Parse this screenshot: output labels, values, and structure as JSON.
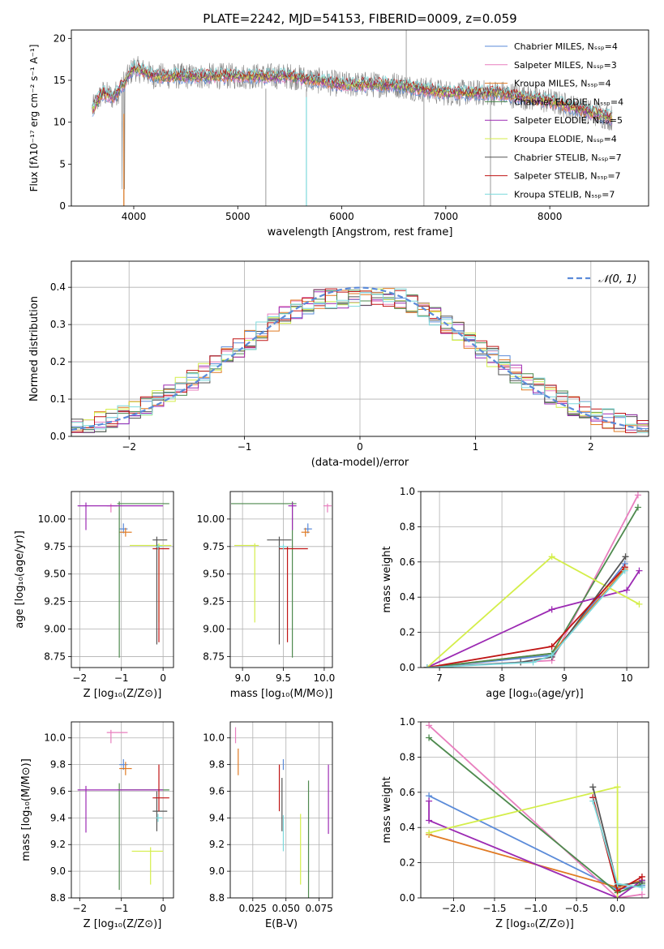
{
  "colors": {
    "chabrier_miles": "#5b8bd9",
    "salpeter_miles": "#e87fbe",
    "kroupa_miles": "#e07a23",
    "chabrier_elodie": "#4e8a4e",
    "salpeter_elodie": "#9c2ab3",
    "kroupa_elodie": "#d4ee4a",
    "chabrier_stelib": "#555555",
    "salpeter_stelib": "#c01515",
    "kroupa_stelib": "#7dd9dc",
    "gaussian": "#5b8bd9",
    "data": "#808080"
  },
  "chart_data": [
    {
      "id": "spectrum",
      "type": "line",
      "title": "PLATE=2242, MJD=54153, FIBERID=0009, z=0.059",
      "xlabel": "wavelength [Angstrom, rest frame]",
      "ylabel": "Flux [fλ10⁻¹⁷ erg cm⁻² s⁻¹ A⁻¹]",
      "xlim": [
        3400,
        8950
      ],
      "ylim": [
        0,
        21
      ],
      "xticks": [
        "4000",
        "5000",
        "6000",
        "7000",
        "8000"
      ],
      "yticks": [
        "0",
        "5",
        "10",
        "15",
        "20"
      ],
      "legend_position": "upper right",
      "continuum_anchors_x": [
        3600,
        3700,
        3800,
        3900,
        4000,
        4100,
        4200,
        4300,
        4500,
        5000,
        5500,
        6000,
        6500,
        7000,
        7500,
        8000,
        8600
      ],
      "continuum_anchors_y": [
        11.5,
        13.5,
        13.0,
        14.5,
        16.5,
        16.0,
        15.5,
        15.5,
        15.5,
        15.5,
        15.5,
        14.5,
        14.5,
        13.5,
        13.5,
        12.5,
        10.5
      ],
      "series": [
        {
          "name": "Chabrier MILES, Nₛₛₚ=4",
          "color_key": "chabrier_miles"
        },
        {
          "name": "Salpeter MILES, Nₛₛₚ=3",
          "color_key": "salpeter_miles"
        },
        {
          "name": "Kroupa MILES, Nₛₛₚ=4",
          "color_key": "kroupa_miles"
        },
        {
          "name": "Chabrier ELODIE, Nₛₛₚ=4",
          "color_key": "chabrier_elodie"
        },
        {
          "name": "Salpeter ELODIE, Nₛₛₚ=5",
          "color_key": "salpeter_elodie"
        },
        {
          "name": "Kroupa ELODIE, Nₛₛₚ=4",
          "color_key": "kroupa_elodie"
        },
        {
          "name": "Chabrier STELIB, Nₛₛₚ=7",
          "color_key": "chabrier_stelib"
        },
        {
          "name": "Salpeter STELIB, Nₛₛₚ=7",
          "color_key": "salpeter_stelib"
        },
        {
          "name": "Kroupa STELIB, Nₛₛₚ=7",
          "color_key": "kroupa_stelib"
        }
      ]
    },
    {
      "id": "residual_hist",
      "type": "area",
      "xlabel": "(data-model)/error",
      "ylabel": "Normed distribution",
      "xlim": [
        -2.5,
        2.5
      ],
      "ylim": [
        0,
        0.47
      ],
      "xticks": [
        "−2",
        "−1",
        "0",
        "1",
        "2"
      ],
      "yticks": [
        "0.0",
        "0.1",
        "0.2",
        "0.3",
        "0.4"
      ],
      "legend": "𝒩(0, 1)",
      "legend_position": "upper right"
    },
    {
      "id": "age_vs_Z",
      "type": "scatter",
      "xlabel": "Z [log₁₀(Z/Z⊙)]",
      "ylabel": "age  [log₁₀(age/yr)]",
      "xlim": [
        -2.2,
        0.25
      ],
      "ylim": [
        8.65,
        10.25
      ],
      "xticks": [
        "−2",
        "−1",
        "0"
      ],
      "yticks": [
        "8.75",
        "9.00",
        "9.25",
        "9.50",
        "9.75",
        "10.00"
      ],
      "points": [
        {
          "c": "chabrier_miles",
          "x": -0.95,
          "xerr": [
            0.1,
            0.1
          ],
          "y": 9.91,
          "yerr": [
            0.04,
            0.05
          ]
        },
        {
          "c": "salpeter_miles",
          "x": -1.25,
          "xerr": [
            0.1,
            0.15
          ],
          "y": 10.12,
          "yerr": [
            0.06,
            0.02
          ]
        },
        {
          "c": "kroupa_miles",
          "x": -0.9,
          "xerr": [
            0.15,
            0.15
          ],
          "y": 9.88,
          "yerr": [
            0.04,
            0.04
          ]
        },
        {
          "c": "chabrier_elodie",
          "x": -1.05,
          "xerr": [
            0.05,
            1.2
          ],
          "y": 10.14,
          "yerr": [
            1.4,
            0.02
          ]
        },
        {
          "c": "salpeter_elodie",
          "x": -1.85,
          "xerr": [
            0.2,
            1.85
          ],
          "y": 10.12,
          "yerr": [
            0.22,
            0.03
          ]
        },
        {
          "c": "kroupa_elodie",
          "x": -0.1,
          "xerr": [
            0.7,
            0.3
          ],
          "y": 9.76,
          "yerr": [
            0.7,
            0.02
          ]
        },
        {
          "c": "chabrier_stelib",
          "x": -0.15,
          "xerr": [
            0.1,
            0.25
          ],
          "y": 9.81,
          "yerr": [
            0.95,
            0.03
          ]
        },
        {
          "c": "salpeter_stelib",
          "x": -0.1,
          "xerr": [
            0.15,
            0.25
          ],
          "y": 9.73,
          "yerr": [
            0.85,
            0.02
          ]
        },
        {
          "c": "kroupa_stelib",
          "x": -0.12,
          "xerr": [
            0.05,
            0.1
          ],
          "y": 9.75,
          "yerr": [
            0.03,
            0.02
          ]
        }
      ]
    },
    {
      "id": "age_vs_mass",
      "type": "scatter",
      "xlabel": "mass [log₁₀(M/M⊙)]",
      "ylabel": "",
      "xlim": [
        8.85,
        10.1
      ],
      "ylim": [
        8.65,
        10.25
      ],
      "xticks": [
        "9.0",
        "9.5",
        "10.0"
      ],
      "yticks": [
        "8.75",
        "9.00",
        "9.25",
        "9.50",
        "9.75",
        "10.00"
      ],
      "points": [
        {
          "c": "chabrier_miles",
          "x": 9.8,
          "xerr": [
            0.05,
            0.05
          ],
          "y": 9.91,
          "yerr": [
            0.04,
            0.05
          ]
        },
        {
          "c": "salpeter_miles",
          "x": 10.04,
          "xerr": [
            0.05,
            0.05
          ],
          "y": 10.12,
          "yerr": [
            0.06,
            0.02
          ]
        },
        {
          "c": "kroupa_miles",
          "x": 9.77,
          "xerr": [
            0.05,
            0.05
          ],
          "y": 9.88,
          "yerr": [
            0.04,
            0.04
          ]
        },
        {
          "c": "chabrier_elodie",
          "x": 9.61,
          "xerr": [
            0.75,
            0.05
          ],
          "y": 10.14,
          "yerr": [
            1.4,
            0.02
          ]
        },
        {
          "c": "salpeter_elodie",
          "x": 9.61,
          "xerr": [
            0.05,
            0.05
          ],
          "y": 10.12,
          "yerr": [
            0.22,
            0.03
          ]
        },
        {
          "c": "kroupa_elodie",
          "x": 9.15,
          "xerr": [
            0.25,
            0.05
          ],
          "y": 9.76,
          "yerr": [
            0.7,
            0.02
          ]
        },
        {
          "c": "chabrier_stelib",
          "x": 9.45,
          "xerr": [
            0.15,
            0.15
          ],
          "y": 9.81,
          "yerr": [
            0.95,
            0.03
          ]
        },
        {
          "c": "salpeter_stelib",
          "x": 9.55,
          "xerr": [
            0.1,
            0.25
          ],
          "y": 9.73,
          "yerr": [
            0.85,
            0.02
          ]
        },
        {
          "c": "kroupa_stelib",
          "x": 9.5,
          "xerr": [
            0.05,
            0.05
          ],
          "y": 9.75,
          "yerr": [
            0.03,
            0.02
          ]
        }
      ]
    },
    {
      "id": "mass_weight_vs_age",
      "type": "line",
      "xlabel": "age  [log₁₀(age/yr)]",
      "ylabel": "mass weight",
      "xlim": [
        6.7,
        10.35
      ],
      "ylim": [
        0,
        1.0
      ],
      "xticks": [
        "7",
        "8",
        "9",
        "10"
      ],
      "yticks": [
        "0.0",
        "0.2",
        "0.4",
        "0.6",
        "0.8",
        "1.0"
      ],
      "series": [
        {
          "c": "chabrier_miles",
          "x": [
            6.8,
            8.8,
            9.97
          ],
          "y": [
            0.0,
            0.07,
            0.59
          ]
        },
        {
          "c": "salpeter_miles",
          "x": [
            6.8,
            8.8,
            10.18
          ],
          "y": [
            0.0,
            0.04,
            0.98
          ]
        },
        {
          "c": "kroupa_miles",
          "x": [
            6.8,
            8.8,
            9.97
          ],
          "y": [
            0.0,
            0.08,
            0.56
          ]
        },
        {
          "c": "chabrier_elodie",
          "x": [
            6.8,
            8.8,
            10.18
          ],
          "y": [
            0.0,
            0.08,
            0.91
          ]
        },
        {
          "c": "salpeter_elodie",
          "x": [
            6.8,
            8.8,
            10.0,
            10.2
          ],
          "y": [
            0.0,
            0.33,
            0.44,
            0.55
          ]
        },
        {
          "c": "kroupa_elodie",
          "x": [
            6.8,
            8.8,
            10.2
          ],
          "y": [
            0.0,
            0.63,
            0.36
          ]
        },
        {
          "c": "chabrier_stelib",
          "x": [
            6.8,
            8.3,
            8.8,
            9.98
          ],
          "y": [
            0.0,
            0.03,
            0.06,
            0.63
          ]
        },
        {
          "c": "salpeter_stelib",
          "x": [
            6.8,
            8.8,
            9.97
          ],
          "y": [
            0.0,
            0.12,
            0.57
          ]
        },
        {
          "c": "kroupa_stelib",
          "x": [
            6.8,
            8.5,
            8.8,
            9.97
          ],
          "y": [
            0.0,
            0.03,
            0.07,
            0.55
          ]
        }
      ]
    },
    {
      "id": "mass_vs_Z",
      "type": "scatter",
      "xlabel": "Z [log₁₀(Z/Z⊙)]",
      "ylabel": "mass [log₁₀(M/M⊙)]",
      "xlim": [
        -2.2,
        0.25
      ],
      "ylim": [
        8.8,
        10.12
      ],
      "xticks": [
        "−2",
        "−1",
        "0"
      ],
      "yticks": [
        "8.8",
        "9.0",
        "9.2",
        "9.4",
        "9.6",
        "9.8",
        "10.0"
      ],
      "points": [
        {
          "c": "chabrier_miles",
          "x": -0.95,
          "xerr": [
            0.1,
            0.1
          ],
          "y": 9.8,
          "yerr": [
            0.04,
            0.04
          ]
        },
        {
          "c": "salpeter_miles",
          "x": -1.25,
          "xerr": [
            0.1,
            0.4
          ],
          "y": 10.04,
          "yerr": [
            0.08,
            0.02
          ]
        },
        {
          "c": "kroupa_miles",
          "x": -0.9,
          "xerr": [
            0.15,
            0.15
          ],
          "y": 9.77,
          "yerr": [
            0.05,
            0.05
          ]
        },
        {
          "c": "chabrier_elodie",
          "x": -1.05,
          "xerr": [
            0.05,
            1.2
          ],
          "y": 9.61,
          "yerr": [
            0.75,
            0.05
          ]
        },
        {
          "c": "salpeter_elodie",
          "x": -1.85,
          "xerr": [
            0.2,
            1.85
          ],
          "y": 9.61,
          "yerr": [
            0.32,
            0.03
          ]
        },
        {
          "c": "kroupa_elodie",
          "x": -0.3,
          "xerr": [
            0.45,
            0.3
          ],
          "y": 9.15,
          "yerr": [
            0.25,
            0.03
          ]
        },
        {
          "c": "chabrier_stelib",
          "x": -0.15,
          "xerr": [
            0.1,
            0.25
          ],
          "y": 9.45,
          "yerr": [
            0.15,
            0.15
          ]
        },
        {
          "c": "salpeter_stelib",
          "x": -0.1,
          "xerr": [
            0.15,
            0.25
          ],
          "y": 9.55,
          "yerr": [
            0.1,
            0.25
          ]
        },
        {
          "c": "kroupa_stelib",
          "x": -0.12,
          "xerr": [
            0.05,
            0.1
          ],
          "y": 9.4,
          "yerr": [
            0.03,
            0.03
          ]
        }
      ]
    },
    {
      "id": "mass_vs_ebv",
      "type": "scatter",
      "xlabel": "E(B-V)",
      "ylabel": "",
      "xlim": [
        0.008,
        0.085
      ],
      "ylim": [
        8.8,
        10.12
      ],
      "xticks": [
        "0.025",
        "0.050",
        "0.075"
      ],
      "yticks": [
        "8.8",
        "9.0",
        "9.2",
        "9.4",
        "9.6",
        "9.8",
        "10.0"
      ],
      "points": [
        {
          "c": "chabrier_miles",
          "x": 0.048,
          "y": 9.8,
          "yerr": [
            0.04,
            0.04
          ]
        },
        {
          "c": "salpeter_miles",
          "x": 0.012,
          "y": 10.04,
          "yerr": [
            0.08,
            0.04
          ]
        },
        {
          "c": "kroupa_miles",
          "x": 0.014,
          "y": 9.82,
          "yerr": [
            0.1,
            0.1
          ]
        },
        {
          "c": "chabrier_elodie",
          "x": 0.067,
          "y": 9.1,
          "yerr": [
            0.45,
            0.58
          ]
        },
        {
          "c": "salpeter_elodie",
          "x": 0.082,
          "y": 9.6,
          "yerr": [
            0.32,
            0.2
          ]
        },
        {
          "c": "kroupa_elodie",
          "x": 0.061,
          "y": 9.15,
          "yerr": [
            0.25,
            0.28
          ]
        },
        {
          "c": "chabrier_stelib",
          "x": 0.047,
          "y": 9.45,
          "yerr": [
            0.15,
            0.25
          ]
        },
        {
          "c": "salpeter_stelib",
          "x": 0.045,
          "y": 9.55,
          "yerr": [
            0.1,
            0.25
          ]
        },
        {
          "c": "kroupa_stelib",
          "x": 0.048,
          "y": 9.3,
          "yerr": [
            0.15,
            0.12
          ]
        }
      ]
    },
    {
      "id": "mass_weight_vs_Z",
      "type": "line",
      "xlabel": "Z [log₁₀(Z/Z⊙)]",
      "ylabel": "mass weight",
      "xlim": [
        -2.4,
        0.38
      ],
      "ylim": [
        0,
        1.0
      ],
      "xticks": [
        "−2.0",
        "−1.5",
        "−1.0",
        "−0.5",
        "0.0"
      ],
      "yticks": [
        "0.0",
        "0.2",
        "0.4",
        "0.6",
        "0.8",
        "1.0"
      ],
      "series": [
        {
          "c": "chabrier_miles",
          "x": [
            -2.3,
            0.0,
            0.3
          ],
          "y": [
            0.58,
            0.05,
            0.07
          ]
        },
        {
          "c": "salpeter_miles",
          "x": [
            -2.3,
            0.0,
            0.3
          ],
          "y": [
            0.98,
            0.0,
            0.02
          ]
        },
        {
          "c": "kroupa_miles",
          "x": [
            -2.3,
            0.0,
            0.3
          ],
          "y": [
            0.36,
            0.06,
            0.1
          ]
        },
        {
          "c": "chabrier_elodie",
          "x": [
            -2.3,
            0.0,
            0.3
          ],
          "y": [
            0.91,
            0.03,
            0.08
          ]
        },
        {
          "c": "salpeter_elodie",
          "x": [
            -2.3,
            -2.3,
            0.0,
            0.3
          ],
          "y": [
            0.55,
            0.44,
            0.0,
            0.1
          ]
        },
        {
          "c": "kroupa_elodie",
          "x": [
            -2.3,
            0.0,
            0.0
          ],
          "y": [
            0.37,
            0.63,
            0.0
          ]
        },
        {
          "c": "chabrier_stelib",
          "x": [
            -0.3,
            0.0,
            0.3
          ],
          "y": [
            0.63,
            0.07,
            0.09
          ]
        },
        {
          "c": "salpeter_stelib",
          "x": [
            -0.3,
            0.0,
            0.3
          ],
          "y": [
            0.57,
            0.04,
            0.12
          ]
        },
        {
          "c": "kroupa_stelib",
          "x": [
            -0.3,
            0.0,
            0.3
          ],
          "y": [
            0.55,
            0.08,
            0.06
          ]
        }
      ]
    }
  ]
}
